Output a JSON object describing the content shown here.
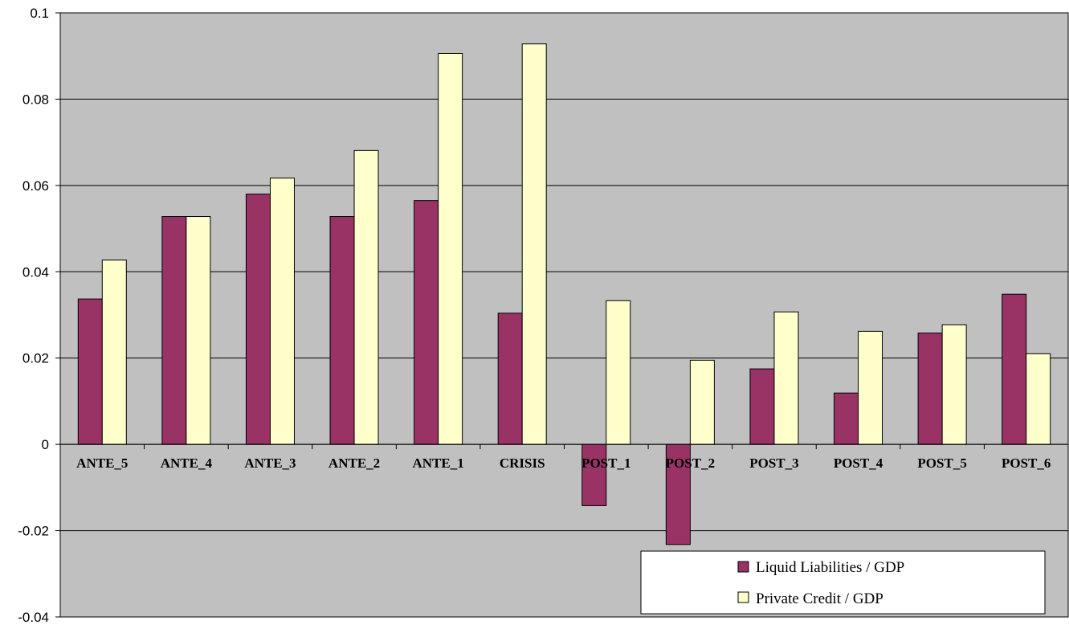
{
  "chart_data": {
    "type": "bar",
    "title": "",
    "xlabel": "",
    "ylabel": "",
    "ylim": [
      -0.04,
      0.1
    ],
    "yticks": [
      -0.04,
      -0.02,
      0,
      0.02,
      0.04,
      0.06,
      0.08,
      0.1
    ],
    "ytick_labels": [
      "-0.04",
      "-0.02",
      "0",
      "0.02",
      "0.04",
      "0.06",
      "0.08",
      "0.1"
    ],
    "categories": [
      "ANTE_5",
      "ANTE_4",
      "ANTE_3",
      "ANTE_2",
      "ANTE_1",
      "CRISIS",
      "POST_1",
      "POST_2",
      "POST_3",
      "POST_4",
      "POST_5",
      "POST_6"
    ],
    "series": [
      {
        "name": "Liquid Liabilities / GDP",
        "color": "#993366",
        "values": [
          0.0337,
          0.0528,
          0.058,
          0.0528,
          0.0565,
          0.0304,
          -0.0142,
          -0.0232,
          0.0175,
          0.0119,
          0.0258,
          0.0348
        ]
      },
      {
        "name": "Private Credit / GDP",
        "color": "#FFFFCC",
        "values": [
          0.0427,
          0.0528,
          0.0617,
          0.0681,
          0.0906,
          0.0928,
          0.0333,
          0.0195,
          0.0307,
          0.0262,
          0.0277,
          0.021
        ]
      }
    ],
    "grid": true,
    "legend_position": "bottom-right",
    "plot_background": "#C0C0C0"
  }
}
